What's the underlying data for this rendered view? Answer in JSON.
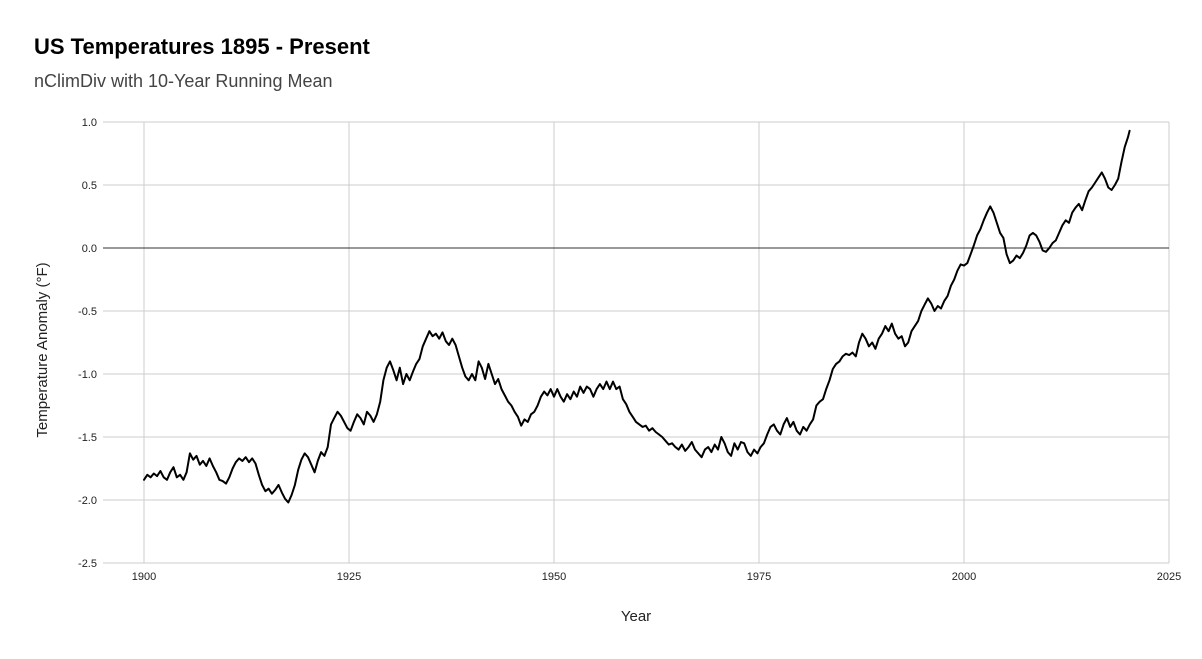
{
  "chart_data": {
    "type": "line",
    "title": "US Temperatures 1895 - Present",
    "subtitle": "nClimDiv with 10-Year Running Mean",
    "xlabel": "Year",
    "ylabel": "Temperature Anomaly (°F)",
    "xlim": [
      1895,
      2025
    ],
    "ylim": [
      -2.5,
      1.0
    ],
    "x_ticks": [
      1900,
      1925,
      1950,
      1975,
      2000,
      2025
    ],
    "y_ticks": [
      1.0,
      0.5,
      0.0,
      -0.5,
      -1.0,
      -1.5,
      -2.0,
      -2.5
    ],
    "y_tick_labels": [
      "1.0",
      "0.5",
      "0.0",
      "-0.5",
      "-1.0",
      "-1.5",
      "-2.0",
      "-2.5"
    ],
    "grid": true,
    "legend": "none",
    "line_color": "#000000",
    "series": [
      {
        "points": [
          [
            1900.0,
            -1.84
          ],
          [
            1900.4,
            -1.8
          ],
          [
            1900.8,
            -1.82
          ],
          [
            1901.2,
            -1.79
          ],
          [
            1901.6,
            -1.81
          ],
          [
            1902.0,
            -1.77
          ],
          [
            1902.4,
            -1.82
          ],
          [
            1902.8,
            -1.84
          ],
          [
            1903.2,
            -1.78
          ],
          [
            1903.6,
            -1.74
          ],
          [
            1904.0,
            -1.82
          ],
          [
            1904.4,
            -1.8
          ],
          [
            1904.8,
            -1.84
          ],
          [
            1905.2,
            -1.78
          ],
          [
            1905.6,
            -1.63
          ],
          [
            1906.0,
            -1.68
          ],
          [
            1906.4,
            -1.65
          ],
          [
            1906.8,
            -1.72
          ],
          [
            1907.2,
            -1.69
          ],
          [
            1907.6,
            -1.73
          ],
          [
            1908.0,
            -1.67
          ],
          [
            1908.4,
            -1.73
          ],
          [
            1908.8,
            -1.78
          ],
          [
            1909.2,
            -1.84
          ],
          [
            1909.6,
            -1.85
          ],
          [
            1910.0,
            -1.87
          ],
          [
            1910.4,
            -1.82
          ],
          [
            1910.8,
            -1.75
          ],
          [
            1911.2,
            -1.7
          ],
          [
            1911.6,
            -1.67
          ],
          [
            1912.0,
            -1.69
          ],
          [
            1912.4,
            -1.66
          ],
          [
            1912.8,
            -1.7
          ],
          [
            1913.2,
            -1.67
          ],
          [
            1913.6,
            -1.71
          ],
          [
            1914.0,
            -1.8
          ],
          [
            1914.4,
            -1.88
          ],
          [
            1914.8,
            -1.93
          ],
          [
            1915.2,
            -1.91
          ],
          [
            1915.6,
            -1.95
          ],
          [
            1916.0,
            -1.92
          ],
          [
            1916.4,
            -1.88
          ],
          [
            1916.8,
            -1.94
          ],
          [
            1917.2,
            -1.99
          ],
          [
            1917.6,
            -2.02
          ],
          [
            1918.0,
            -1.96
          ],
          [
            1918.4,
            -1.88
          ],
          [
            1918.8,
            -1.76
          ],
          [
            1919.2,
            -1.68
          ],
          [
            1919.6,
            -1.63
          ],
          [
            1920.0,
            -1.66
          ],
          [
            1920.4,
            -1.72
          ],
          [
            1920.8,
            -1.78
          ],
          [
            1921.2,
            -1.69
          ],
          [
            1921.6,
            -1.62
          ],
          [
            1922.0,
            -1.65
          ],
          [
            1922.4,
            -1.58
          ],
          [
            1922.8,
            -1.4
          ],
          [
            1923.2,
            -1.35
          ],
          [
            1923.6,
            -1.3
          ],
          [
            1924.0,
            -1.33
          ],
          [
            1924.4,
            -1.38
          ],
          [
            1924.8,
            -1.43
          ],
          [
            1925.2,
            -1.45
          ],
          [
            1925.6,
            -1.38
          ],
          [
            1926.0,
            -1.32
          ],
          [
            1926.4,
            -1.35
          ],
          [
            1926.8,
            -1.4
          ],
          [
            1927.2,
            -1.3
          ],
          [
            1927.6,
            -1.33
          ],
          [
            1928.0,
            -1.38
          ],
          [
            1928.4,
            -1.32
          ],
          [
            1928.8,
            -1.22
          ],
          [
            1929.2,
            -1.05
          ],
          [
            1929.6,
            -0.95
          ],
          [
            1930.0,
            -0.9
          ],
          [
            1930.4,
            -0.97
          ],
          [
            1930.8,
            -1.05
          ],
          [
            1931.2,
            -0.95
          ],
          [
            1931.6,
            -1.08
          ],
          [
            1932.0,
            -1.0
          ],
          [
            1932.4,
            -1.05
          ],
          [
            1932.8,
            -0.98
          ],
          [
            1933.2,
            -0.92
          ],
          [
            1933.6,
            -0.88
          ],
          [
            1934.0,
            -0.78
          ],
          [
            1934.4,
            -0.72
          ],
          [
            1934.8,
            -0.66
          ],
          [
            1935.2,
            -0.7
          ],
          [
            1935.6,
            -0.68
          ],
          [
            1936.0,
            -0.72
          ],
          [
            1936.4,
            -0.67
          ],
          [
            1936.8,
            -0.74
          ],
          [
            1937.2,
            -0.77
          ],
          [
            1937.6,
            -0.72
          ],
          [
            1938.0,
            -0.77
          ],
          [
            1938.4,
            -0.86
          ],
          [
            1938.8,
            -0.95
          ],
          [
            1939.2,
            -1.02
          ],
          [
            1939.6,
            -1.05
          ],
          [
            1940.0,
            -1.0
          ],
          [
            1940.4,
            -1.05
          ],
          [
            1940.8,
            -0.9
          ],
          [
            1941.2,
            -0.95
          ],
          [
            1941.6,
            -1.04
          ],
          [
            1942.0,
            -0.92
          ],
          [
            1942.4,
            -1.0
          ],
          [
            1942.8,
            -1.08
          ],
          [
            1943.2,
            -1.04
          ],
          [
            1943.6,
            -1.12
          ],
          [
            1944.0,
            -1.17
          ],
          [
            1944.4,
            -1.22
          ],
          [
            1944.8,
            -1.25
          ],
          [
            1945.2,
            -1.3
          ],
          [
            1945.6,
            -1.34
          ],
          [
            1946.0,
            -1.41
          ],
          [
            1946.4,
            -1.36
          ],
          [
            1946.8,
            -1.38
          ],
          [
            1947.2,
            -1.32
          ],
          [
            1947.6,
            -1.3
          ],
          [
            1948.0,
            -1.25
          ],
          [
            1948.4,
            -1.18
          ],
          [
            1948.8,
            -1.14
          ],
          [
            1949.2,
            -1.17
          ],
          [
            1949.6,
            -1.12
          ],
          [
            1950.0,
            -1.18
          ],
          [
            1950.4,
            -1.12
          ],
          [
            1950.8,
            -1.18
          ],
          [
            1951.2,
            -1.22
          ],
          [
            1951.6,
            -1.16
          ],
          [
            1952.0,
            -1.2
          ],
          [
            1952.4,
            -1.14
          ],
          [
            1952.8,
            -1.18
          ],
          [
            1953.2,
            -1.1
          ],
          [
            1953.6,
            -1.15
          ],
          [
            1954.0,
            -1.1
          ],
          [
            1954.4,
            -1.12
          ],
          [
            1954.8,
            -1.18
          ],
          [
            1955.2,
            -1.12
          ],
          [
            1955.6,
            -1.08
          ],
          [
            1956.0,
            -1.12
          ],
          [
            1956.4,
            -1.06
          ],
          [
            1956.8,
            -1.12
          ],
          [
            1957.2,
            -1.06
          ],
          [
            1957.6,
            -1.12
          ],
          [
            1958.0,
            -1.1
          ],
          [
            1958.4,
            -1.2
          ],
          [
            1958.8,
            -1.24
          ],
          [
            1959.2,
            -1.3
          ],
          [
            1959.6,
            -1.34
          ],
          [
            1960.0,
            -1.38
          ],
          [
            1960.4,
            -1.4
          ],
          [
            1960.8,
            -1.42
          ],
          [
            1961.2,
            -1.41
          ],
          [
            1961.6,
            -1.45
          ],
          [
            1962.0,
            -1.43
          ],
          [
            1962.4,
            -1.46
          ],
          [
            1962.8,
            -1.48
          ],
          [
            1963.2,
            -1.5
          ],
          [
            1963.6,
            -1.53
          ],
          [
            1964.0,
            -1.56
          ],
          [
            1964.4,
            -1.55
          ],
          [
            1964.8,
            -1.58
          ],
          [
            1965.2,
            -1.6
          ],
          [
            1965.6,
            -1.56
          ],
          [
            1966.0,
            -1.61
          ],
          [
            1966.4,
            -1.58
          ],
          [
            1966.8,
            -1.54
          ],
          [
            1967.2,
            -1.6
          ],
          [
            1967.6,
            -1.63
          ],
          [
            1968.0,
            -1.66
          ],
          [
            1968.4,
            -1.6
          ],
          [
            1968.8,
            -1.58
          ],
          [
            1969.2,
            -1.62
          ],
          [
            1969.6,
            -1.56
          ],
          [
            1970.0,
            -1.6
          ],
          [
            1970.4,
            -1.5
          ],
          [
            1970.8,
            -1.55
          ],
          [
            1971.2,
            -1.62
          ],
          [
            1971.6,
            -1.65
          ],
          [
            1972.0,
            -1.55
          ],
          [
            1972.4,
            -1.6
          ],
          [
            1972.8,
            -1.54
          ],
          [
            1973.2,
            -1.55
          ],
          [
            1973.6,
            -1.62
          ],
          [
            1974.0,
            -1.65
          ],
          [
            1974.4,
            -1.6
          ],
          [
            1974.8,
            -1.63
          ],
          [
            1975.2,
            -1.58
          ],
          [
            1975.6,
            -1.55
          ],
          [
            1976.0,
            -1.48
          ],
          [
            1976.4,
            -1.42
          ],
          [
            1976.8,
            -1.4
          ],
          [
            1977.2,
            -1.45
          ],
          [
            1977.6,
            -1.48
          ],
          [
            1978.0,
            -1.4
          ],
          [
            1978.4,
            -1.35
          ],
          [
            1978.8,
            -1.42
          ],
          [
            1979.2,
            -1.38
          ],
          [
            1979.6,
            -1.45
          ],
          [
            1980.0,
            -1.48
          ],
          [
            1980.4,
            -1.42
          ],
          [
            1980.8,
            -1.45
          ],
          [
            1981.2,
            -1.4
          ],
          [
            1981.6,
            -1.36
          ],
          [
            1982.0,
            -1.25
          ],
          [
            1982.4,
            -1.22
          ],
          [
            1982.8,
            -1.2
          ],
          [
            1983.2,
            -1.12
          ],
          [
            1983.6,
            -1.05
          ],
          [
            1984.0,
            -0.96
          ],
          [
            1984.4,
            -0.92
          ],
          [
            1984.8,
            -0.9
          ],
          [
            1985.2,
            -0.86
          ],
          [
            1985.6,
            -0.84
          ],
          [
            1986.0,
            -0.85
          ],
          [
            1986.4,
            -0.83
          ],
          [
            1986.8,
            -0.86
          ],
          [
            1987.2,
            -0.75
          ],
          [
            1987.6,
            -0.68
          ],
          [
            1988.0,
            -0.72
          ],
          [
            1988.4,
            -0.78
          ],
          [
            1988.8,
            -0.75
          ],
          [
            1989.2,
            -0.8
          ],
          [
            1989.6,
            -0.72
          ],
          [
            1990.0,
            -0.68
          ],
          [
            1990.4,
            -0.62
          ],
          [
            1990.8,
            -0.66
          ],
          [
            1991.2,
            -0.6
          ],
          [
            1991.6,
            -0.68
          ],
          [
            1992.0,
            -0.72
          ],
          [
            1992.4,
            -0.7
          ],
          [
            1992.8,
            -0.78
          ],
          [
            1993.2,
            -0.75
          ],
          [
            1993.6,
            -0.66
          ],
          [
            1994.0,
            -0.62
          ],
          [
            1994.4,
            -0.58
          ],
          [
            1994.8,
            -0.5
          ],
          [
            1995.2,
            -0.45
          ],
          [
            1995.6,
            -0.4
          ],
          [
            1996.0,
            -0.44
          ],
          [
            1996.4,
            -0.5
          ],
          [
            1996.8,
            -0.46
          ],
          [
            1997.2,
            -0.48
          ],
          [
            1997.6,
            -0.42
          ],
          [
            1998.0,
            -0.38
          ],
          [
            1998.4,
            -0.3
          ],
          [
            1998.8,
            -0.25
          ],
          [
            1999.2,
            -0.18
          ],
          [
            1999.6,
            -0.13
          ],
          [
            2000.0,
            -0.14
          ],
          [
            2000.4,
            -0.12
          ],
          [
            2000.8,
            -0.05
          ],
          [
            2001.2,
            0.02
          ],
          [
            2001.6,
            0.1
          ],
          [
            2002.0,
            0.15
          ],
          [
            2002.4,
            0.22
          ],
          [
            2002.8,
            0.28
          ],
          [
            2003.2,
            0.33
          ],
          [
            2003.6,
            0.28
          ],
          [
            2004.0,
            0.2
          ],
          [
            2004.4,
            0.12
          ],
          [
            2004.8,
            0.08
          ],
          [
            2005.2,
            -0.05
          ],
          [
            2005.6,
            -0.12
          ],
          [
            2006.0,
            -0.1
          ],
          [
            2006.4,
            -0.06
          ],
          [
            2006.8,
            -0.08
          ],
          [
            2007.2,
            -0.04
          ],
          [
            2007.6,
            0.02
          ],
          [
            2008.0,
            0.1
          ],
          [
            2008.4,
            0.12
          ],
          [
            2008.8,
            0.1
          ],
          [
            2009.2,
            0.05
          ],
          [
            2009.6,
            -0.02
          ],
          [
            2010.0,
            -0.03
          ],
          [
            2010.4,
            0.0
          ],
          [
            2010.8,
            0.04
          ],
          [
            2011.2,
            0.06
          ],
          [
            2011.6,
            0.12
          ],
          [
            2012.0,
            0.18
          ],
          [
            2012.4,
            0.22
          ],
          [
            2012.8,
            0.2
          ],
          [
            2013.2,
            0.28
          ],
          [
            2013.6,
            0.32
          ],
          [
            2014.0,
            0.35
          ],
          [
            2014.4,
            0.3
          ],
          [
            2014.8,
            0.38
          ],
          [
            2015.2,
            0.45
          ],
          [
            2015.6,
            0.48
          ],
          [
            2016.0,
            0.52
          ],
          [
            2016.4,
            0.56
          ],
          [
            2016.8,
            0.6
          ],
          [
            2017.2,
            0.55
          ],
          [
            2017.6,
            0.48
          ],
          [
            2018.0,
            0.46
          ],
          [
            2018.4,
            0.5
          ],
          [
            2018.8,
            0.55
          ],
          [
            2019.2,
            0.68
          ],
          [
            2019.6,
            0.8
          ],
          [
            2020.0,
            0.88
          ],
          [
            2020.2,
            0.93
          ]
        ]
      }
    ]
  }
}
